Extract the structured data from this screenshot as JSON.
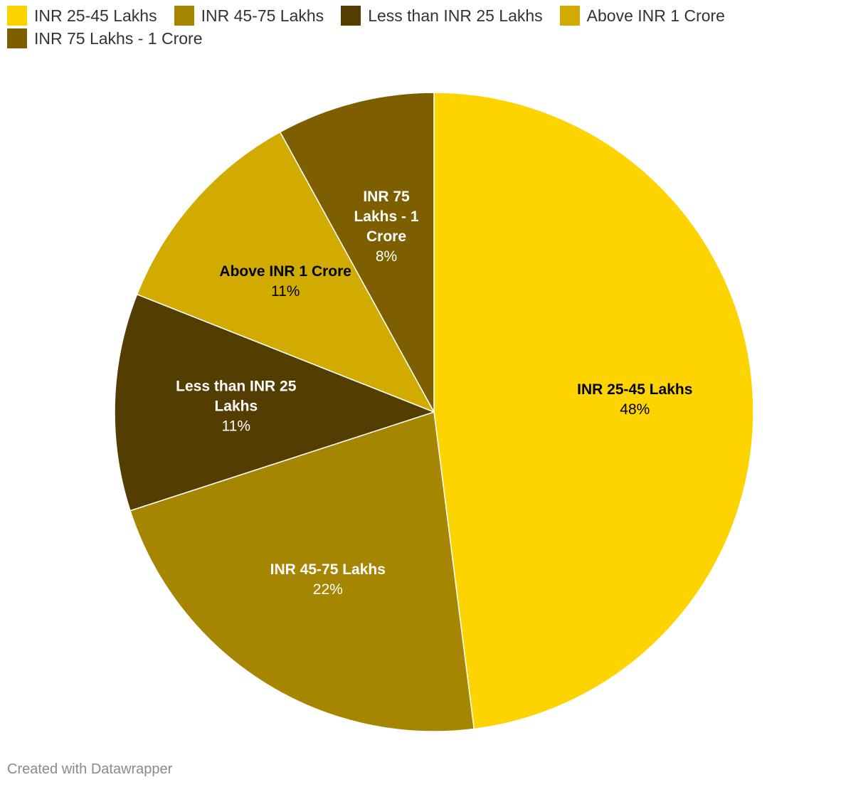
{
  "chart_data": {
    "type": "pie",
    "title": "",
    "slices": [
      {
        "label": "INR 25-45 Lakhs",
        "value": 48,
        "value_label": "48%",
        "color": "#fdd300",
        "label_lines": [
          "INR 25-45 Lakhs"
        ],
        "text_color": "#000000"
      },
      {
        "label": "INR 45-75 Lakhs",
        "value": 22,
        "value_label": "22%",
        "color": "#a68600",
        "label_lines": [
          "INR 45-75 Lakhs"
        ],
        "text_color": "#ffffff"
      },
      {
        "label": "Less than INR 25 Lakhs",
        "value": 11,
        "value_label": "11%",
        "color": "#543d00",
        "label_lines": [
          "Less than INR 25",
          "Lakhs"
        ],
        "text_color": "#ffffff"
      },
      {
        "label": "Above INR 1 Crore",
        "value": 11,
        "value_label": "11%",
        "color": "#d2ab00",
        "label_lines": [
          "Above INR 1 Crore"
        ],
        "text_color": "#000000"
      },
      {
        "label": "INR 75 Lakhs - 1 Crore",
        "value": 8,
        "value_label": "8%",
        "color": "#7d5f00",
        "label_lines": [
          "INR 75",
          "Lakhs - 1",
          "Crore"
        ],
        "text_color": "#ffffff"
      }
    ],
    "start_angle": "12 o'clock",
    "direction": "clockwise",
    "legend_placement": "top-left"
  },
  "legend": {
    "items": [
      {
        "label": "INR 25-45 Lakhs",
        "color": "#fdd300"
      },
      {
        "label": "INR 45-75 Lakhs",
        "color": "#a68600"
      },
      {
        "label": "Less than INR 25 Lakhs",
        "color": "#543d00"
      },
      {
        "label": "Above INR 1 Crore",
        "color": "#d2ab00"
      },
      {
        "label": "INR 75 Lakhs - 1 Crore",
        "color": "#7d5f00"
      }
    ]
  },
  "footer": {
    "credit": "Created with Datawrapper"
  }
}
